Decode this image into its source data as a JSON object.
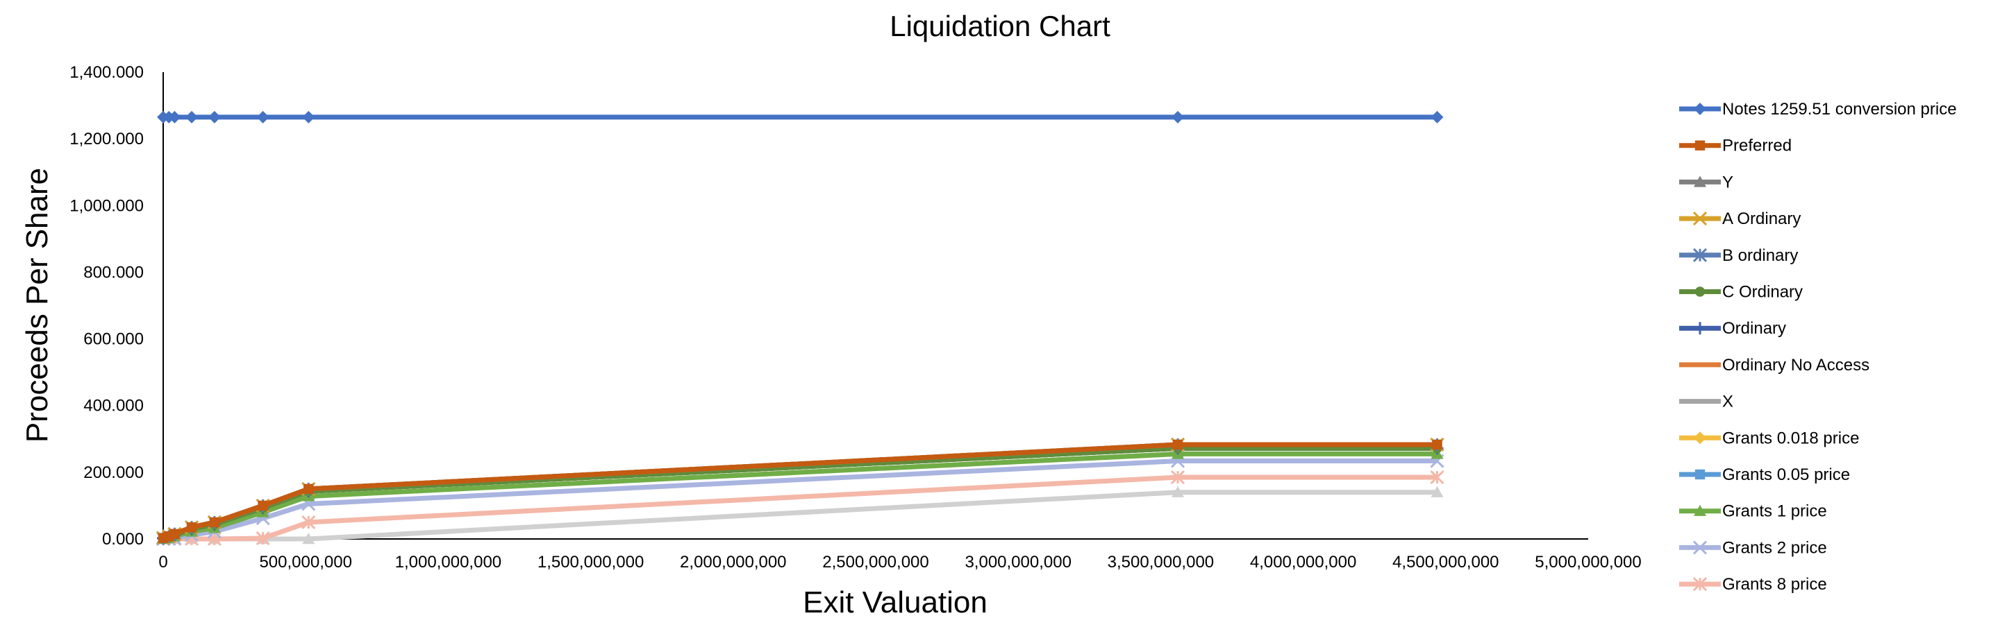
{
  "chart_data": {
    "type": "line",
    "title": "Liquidation Chart",
    "xlabel": "Exit Valuation",
    "ylabel": "Proceeds Per Share",
    "xlim": [
      0,
      5000000000
    ],
    "ylim": [
      0,
      1400
    ],
    "x_ticks": [
      "0",
      "500,000,000",
      "1,000,000,000",
      "1,500,000,000",
      "2,000,000,000",
      "2,500,000,000",
      "3,000,000,000",
      "3,500,000,000",
      "4,000,000,000",
      "4,500,000,000",
      "5,000,000,000"
    ],
    "y_ticks": [
      "0.000",
      "200.000",
      "400.000",
      "600.000",
      "800.000",
      "1,000.000",
      "1,200.000",
      "1,400.000"
    ],
    "grid": false,
    "legend_position": "right",
    "x": [
      0,
      20000000,
      40000000,
      100000000,
      180000000,
      350000000,
      510000000,
      3560000000,
      4470000000
    ],
    "series": [
      {
        "name": "Notes 1259.51 conversion price",
        "color": "#4472C4",
        "marker": "diamond",
        "values": [
          1265,
          1265,
          1265,
          1265,
          1265,
          1265,
          1265,
          1265,
          1265
        ]
      },
      {
        "name": "Preferred",
        "color": "#C55A11",
        "marker": "square",
        "values": [
          3,
          8,
          15,
          35,
          50,
          100,
          150,
          283,
          283
        ]
      },
      {
        "name": "Y",
        "color": "#808080",
        "marker": "triangle",
        "values": [
          3,
          8,
          15,
          35,
          50,
          100,
          150,
          283,
          283
        ]
      },
      {
        "name": "A Ordinary",
        "color": "#D6A22A",
        "marker": "x",
        "values": [
          3,
          8,
          15,
          35,
          50,
          100,
          150,
          283,
          283
        ]
      },
      {
        "name": "B ordinary",
        "color": "#5B7FB5",
        "marker": "star",
        "values": [
          3,
          8,
          15,
          35,
          50,
          100,
          150,
          283,
          283
        ]
      },
      {
        "name": "C Ordinary",
        "color": "#5E8C3A",
        "marker": "circle",
        "values": [
          2,
          6,
          12,
          30,
          44,
          93,
          143,
          272,
          272
        ]
      },
      {
        "name": "Ordinary",
        "color": "#3F5FA8",
        "marker": "plus",
        "values": [
          2,
          6,
          12,
          30,
          44,
          93,
          143,
          272,
          272
        ]
      },
      {
        "name": "Ordinary No Access",
        "color": "#E07B39",
        "marker": "none",
        "values": [
          2,
          6,
          12,
          30,
          44,
          93,
          143,
          272,
          272
        ]
      },
      {
        "name": "X",
        "color": "#A5A5A5",
        "marker": "none",
        "values": [
          2,
          6,
          12,
          30,
          44,
          93,
          143,
          272,
          272
        ]
      },
      {
        "name": "Grants 0.018 price",
        "color": "#F2BC3C",
        "marker": "diamond",
        "values": [
          2,
          6,
          12,
          30,
          44,
          93,
          143,
          272,
          272
        ]
      },
      {
        "name": "Grants 0.05 price",
        "color": "#5B9BD5",
        "marker": "square",
        "values": [
          2,
          8,
          14,
          33,
          48,
          98,
          148,
          281,
          281
        ]
      },
      {
        "name": "Grants 1 price",
        "color": "#70AD47",
        "marker": "triangle",
        "values": [
          0,
          3,
          8,
          22,
          33,
          80,
          128,
          255,
          255
        ]
      },
      {
        "name": "Grants 2 price",
        "color": "#A9B4E0",
        "marker": "x",
        "values": [
          0,
          0,
          2,
          12,
          22,
          62,
          105,
          234,
          234
        ]
      },
      {
        "name": "Grants 8 price",
        "color": "#F4B7A8",
        "marker": "star",
        "values": [
          0,
          0,
          0,
          0,
          0,
          2,
          50,
          185,
          185
        ]
      },
      {
        "name": "",
        "color": "#D0D0D0",
        "marker": "triangle",
        "values": [
          0,
          0,
          0,
          0,
          0,
          0,
          0,
          140,
          140
        ]
      }
    ]
  }
}
